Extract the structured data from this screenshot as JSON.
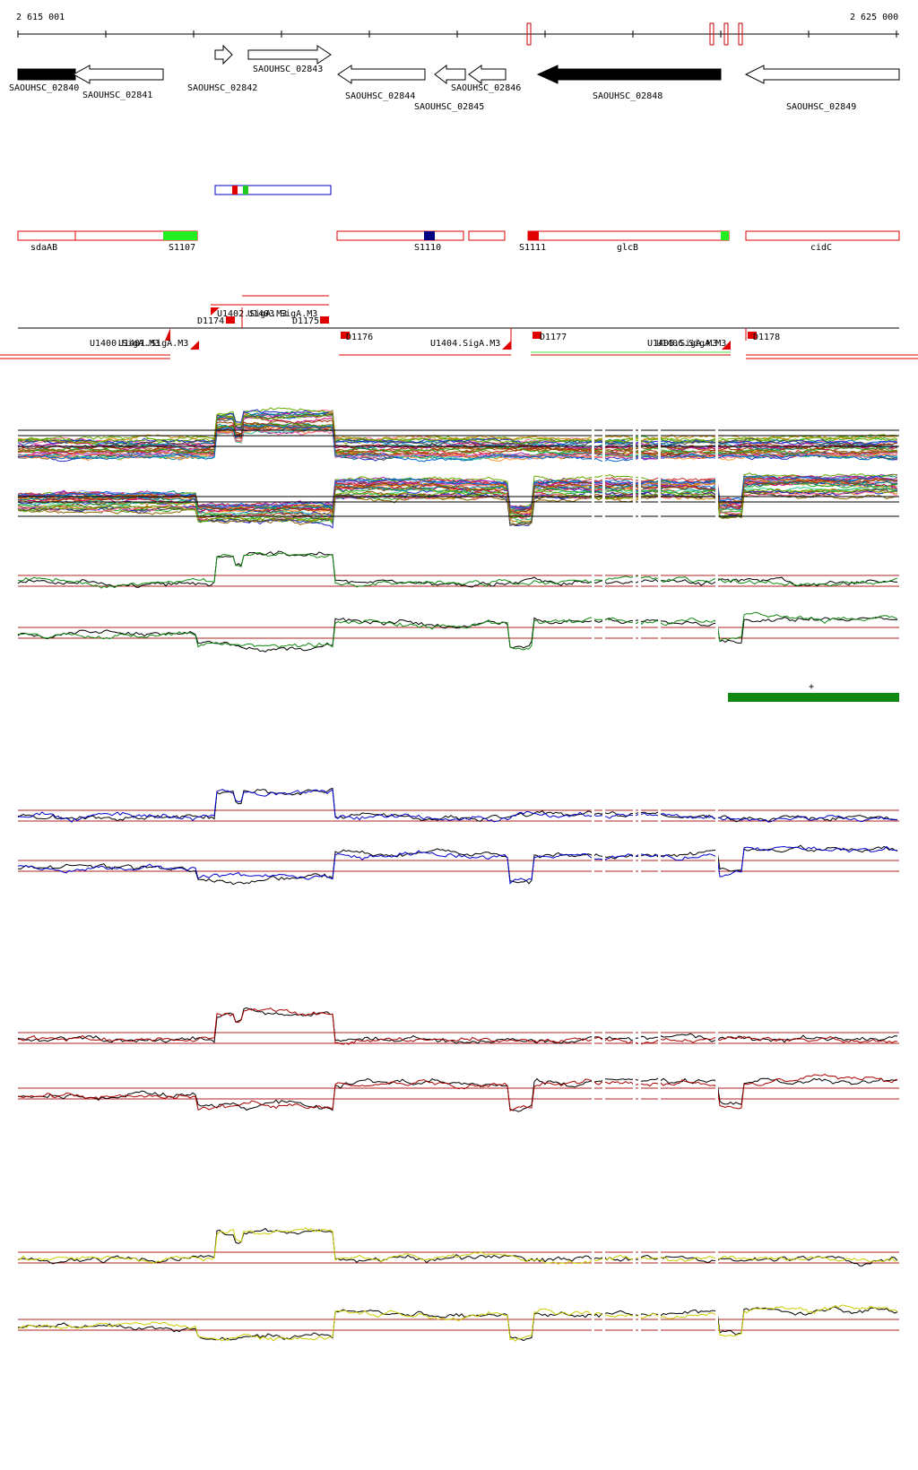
{
  "ruler": {
    "start_label": "2 615 001",
    "end_label": "2 625 000"
  },
  "colors": {
    "red": "#e00000",
    "green": "#22cc22",
    "navy": "#000080",
    "blue": "#0000cc",
    "dark_green": "#006600",
    "crimson": "#a00000",
    "yellow": "#cccc00",
    "thin_red": "#b02020"
  },
  "genes": [
    {
      "name": "SAOUHSC_02840",
      "strand": "-",
      "filled": true
    },
    {
      "name": "SAOUHSC_02841",
      "strand": "-",
      "filled": false
    },
    {
      "name": "SAOUHSC_02842",
      "strand": "+",
      "filled": false
    },
    {
      "name": "SAOUHSC_02843",
      "strand": "+",
      "filled": false
    },
    {
      "name": "SAOUHSC_02844",
      "strand": "-",
      "filled": false
    },
    {
      "name": "SAOUHSC_02845",
      "strand": "-",
      "filled": false
    },
    {
      "name": "SAOUHSC_02846",
      "strand": "-",
      "filled": false
    },
    {
      "name": "SAOUHSC_02848",
      "strand": "-",
      "filled": true
    },
    {
      "name": "SAOUHSC_02849",
      "strand": "-",
      "filled": false
    }
  ],
  "annotations": [
    {
      "name": "sdaAB"
    },
    {
      "name": "S1107"
    },
    {
      "name": "S1110"
    },
    {
      "name": "S1111"
    },
    {
      "name": "glcB"
    },
    {
      "name": "cidC"
    }
  ],
  "segments": [
    {
      "name": "D1174"
    },
    {
      "name": "D1175"
    },
    {
      "name": "D1176"
    },
    {
      "name": "D1177"
    },
    {
      "name": "D1178"
    }
  ],
  "promoters": [
    {
      "name": "U1400.SigA.M3"
    },
    {
      "name": "U1401.SigA.M3"
    },
    {
      "name": "U1402.SigA.M3"
    },
    {
      "name": "U1403.SigA.M3"
    },
    {
      "name": "U1404.SigA.M3"
    },
    {
      "name": "U1405.SigA.M3"
    },
    {
      "name": "U1406.SigA.M3"
    }
  ],
  "marker_symbol": "+"
}
